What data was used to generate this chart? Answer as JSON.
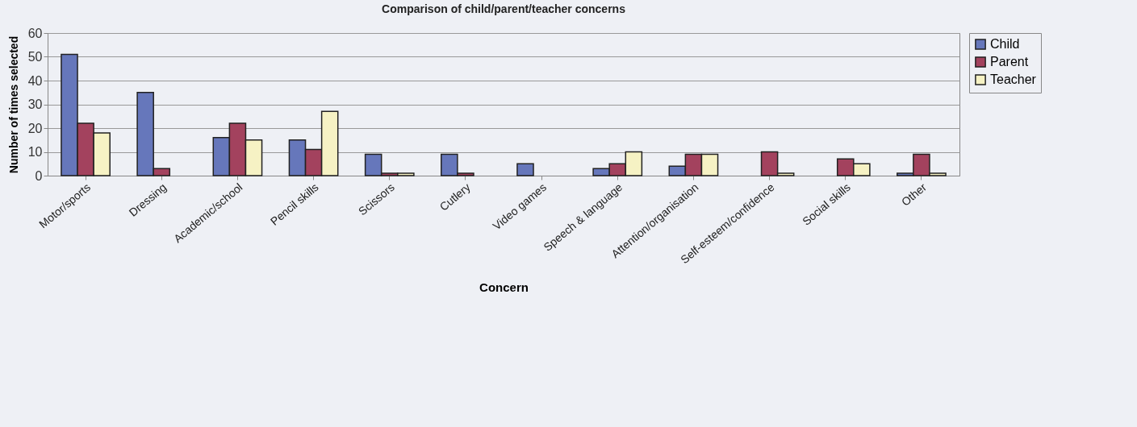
{
  "chart_data": {
    "type": "bar",
    "title": "Comparison of child/parent/teacher concerns",
    "xlabel": "Concern",
    "ylabel": "Number of times selected",
    "categories": [
      "Motor/sports",
      "Dressing",
      "Academic/school",
      "Pencil skills",
      "Scissors",
      "Cutlery",
      "Video games",
      "Speech & language",
      "Attention/organisation",
      "Self-esteem/confidence",
      "Social skills",
      "Other"
    ],
    "series": [
      {
        "name": "Child",
        "color": "#6677bb",
        "values": [
          51,
          35,
          16,
          15,
          9,
          9,
          5,
          3,
          4,
          0,
          0,
          1
        ]
      },
      {
        "name": "Parent",
        "color": "#a3425e",
        "values": [
          22,
          3,
          22,
          11,
          1,
          1,
          0,
          5,
          9,
          10,
          7,
          9
        ]
      },
      {
        "name": "Teacher",
        "color": "#f6f2c4",
        "values": [
          18,
          0,
          15,
          27,
          1,
          0,
          0,
          10,
          9,
          1,
          5,
          1
        ]
      }
    ],
    "ylim": [
      0,
      60
    ],
    "yticks": [
      0,
      10,
      20,
      30,
      40,
      50,
      60
    ],
    "grid": "y",
    "legend": "right"
  }
}
